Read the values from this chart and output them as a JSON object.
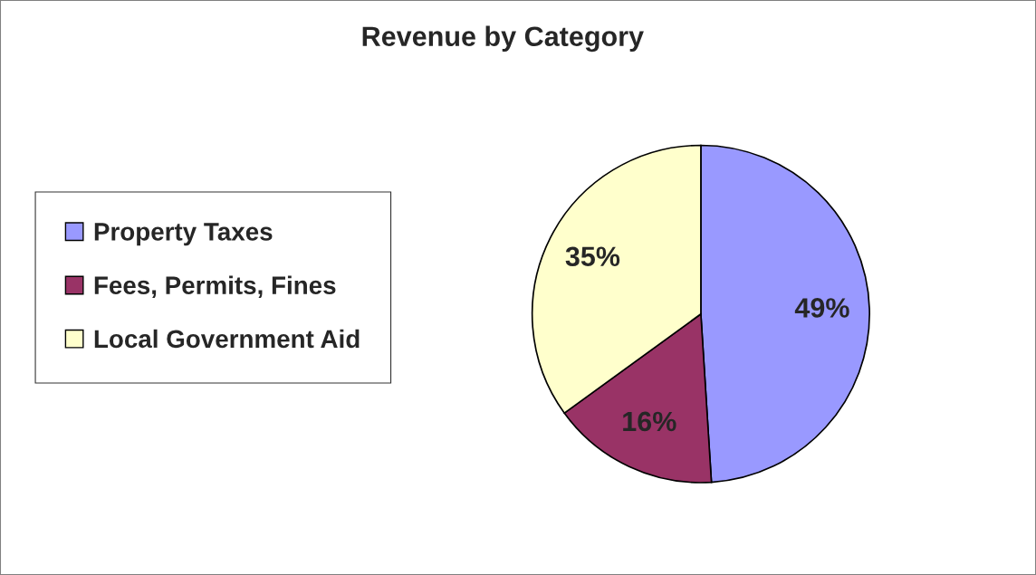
{
  "chart_data": {
    "type": "pie",
    "title": "Revenue by Category",
    "categories": [
      "Property Taxes",
      "Fees, Permits, Fines",
      "Local Government Aid"
    ],
    "values": [
      49,
      16,
      35
    ],
    "value_labels": [
      "49%",
      "16%",
      "35%"
    ],
    "colors": [
      "#9999ff",
      "#993366",
      "#ffffcc"
    ],
    "legend": "left"
  }
}
